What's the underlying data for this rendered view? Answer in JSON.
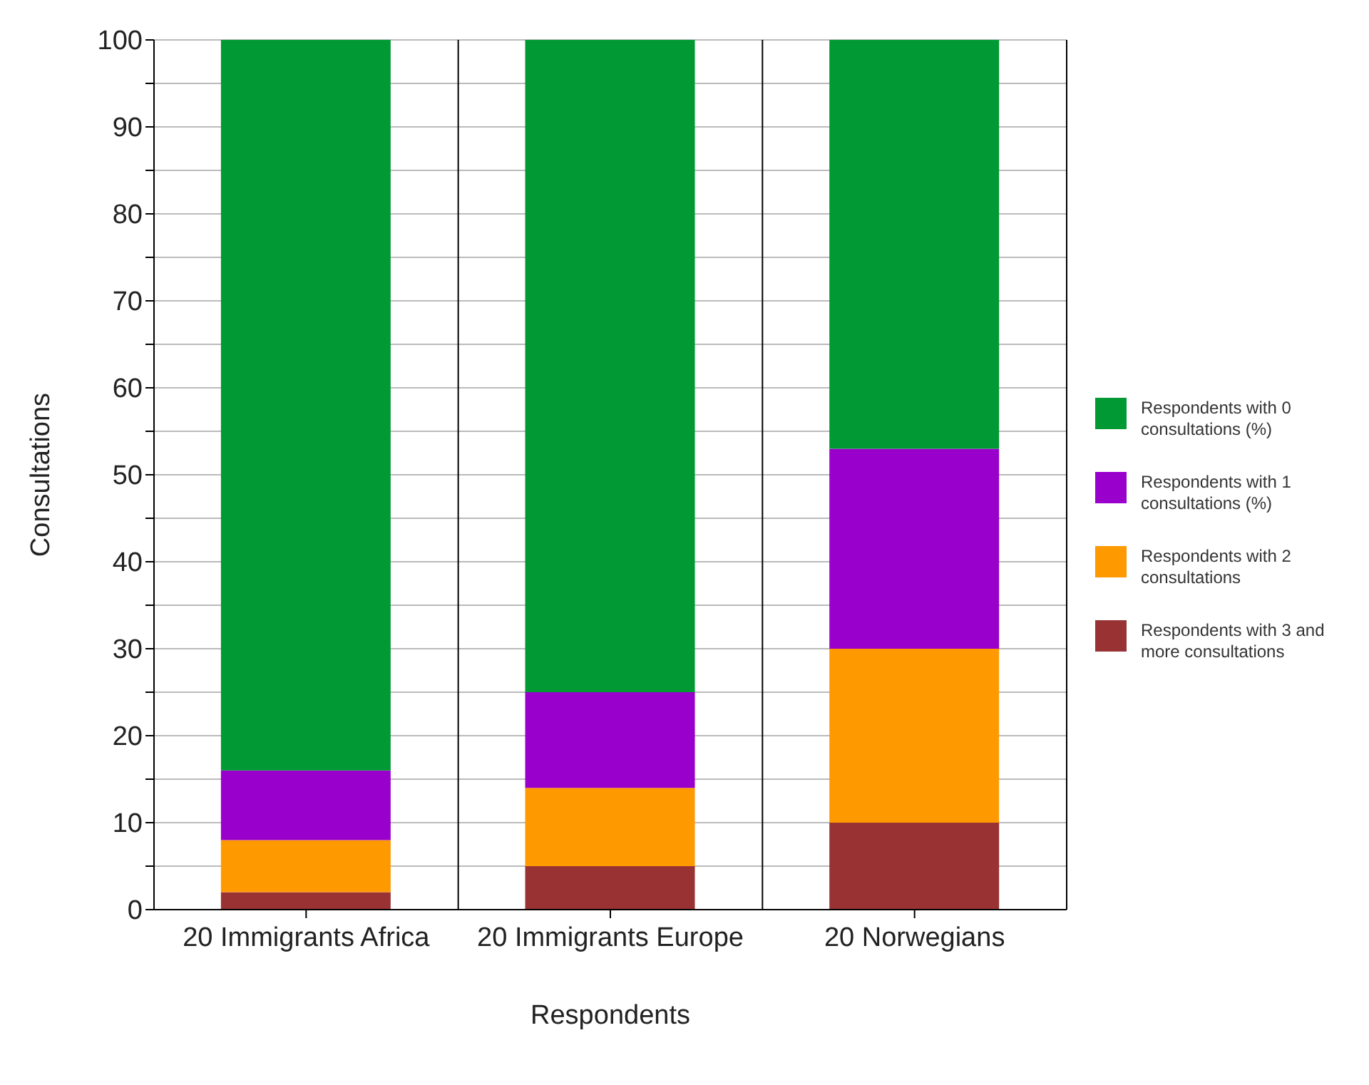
{
  "chart_data": {
    "type": "bar",
    "stacked": true,
    "xlabel": "Respondents",
    "ylabel": "Consultations",
    "categories": [
      "20 Immigrants Africa",
      "20 Immigrants Europe",
      "20 Norwegians"
    ],
    "series": [
      {
        "name": "Respondents with 3 and more consultations",
        "color": "#993333",
        "values": [
          2,
          5,
          10
        ]
      },
      {
        "name": "Respondents with 2 consultations",
        "color": "#ff9900",
        "values": [
          6,
          9,
          20
        ]
      },
      {
        "name": "Respondents with 1 consultations (%)",
        "color": "#9900cc",
        "values": [
          8,
          11,
          23
        ]
      },
      {
        "name": "Respondents with 0 consultations (%)",
        "color": "#009933",
        "values": [
          84,
          75,
          47
        ]
      }
    ],
    "ylim": [
      0,
      100
    ],
    "yticks": [
      0,
      {
        "value": 5,
        "label": null
      },
      10,
      {
        "value": 15,
        "label": null
      },
      20,
      {
        "value": 25,
        "label": null
      },
      30,
      {
        "value": 35,
        "label": null
      },
      40,
      {
        "value": 45,
        "label": null
      },
      50,
      {
        "value": 55,
        "label": null
      },
      60,
      {
        "value": 65,
        "label": null
      },
      70,
      {
        "value": 75,
        "label": null
      },
      80,
      {
        "value": 85,
        "label": null
      },
      90,
      {
        "value": 95,
        "label": null
      },
      100
    ],
    "grid": true,
    "legend": "right"
  }
}
